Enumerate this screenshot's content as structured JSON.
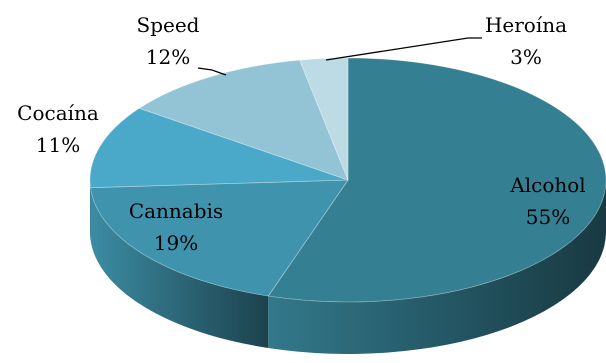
{
  "chart_data": {
    "type": "pie",
    "style": "3d",
    "slices": [
      {
        "name": "Alcohol",
        "value": 55,
        "label": "55%",
        "color": "#357f92",
        "label_inside": true
      },
      {
        "name": "Cannabis",
        "value": 19,
        "label": "19%",
        "color": "#3f93ac",
        "label_inside": true
      },
      {
        "name": "Cocaína",
        "value": 11,
        "label": "11%",
        "color": "#4aa9c8",
        "label_inside": false
      },
      {
        "name": "Speed",
        "value": 12,
        "label": "12%",
        "color": "#93c4d5",
        "label_inside": false
      },
      {
        "name": "Heroína",
        "value": 3,
        "label": "3%",
        "color": "#bcdbe4",
        "label_inside": false
      }
    ]
  }
}
